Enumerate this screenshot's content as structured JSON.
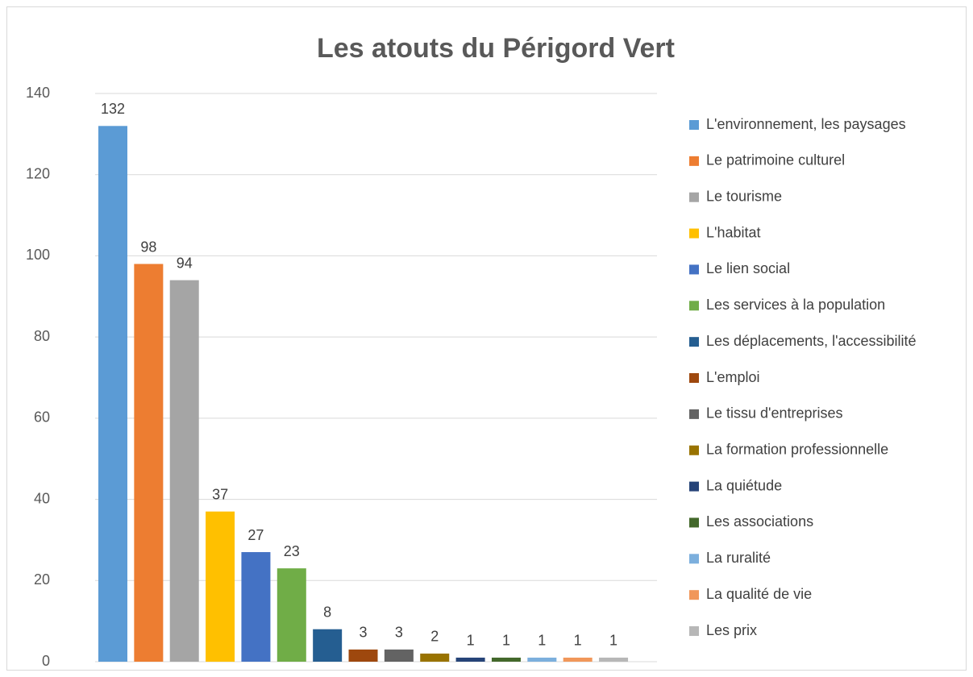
{
  "chart_data": {
    "type": "bar",
    "title": "Les atouts du Périgord Vert",
    "series": [
      {
        "name": "L'environnement, les paysages",
        "color": "#5b9bd5",
        "values": [
          132
        ]
      },
      {
        "name": "Le patrimoine culturel",
        "color": "#ed7d31",
        "values": [
          98
        ]
      },
      {
        "name": "Le tourisme",
        "color": "#a5a5a5",
        "values": [
          94
        ]
      },
      {
        "name": "L'habitat",
        "color": "#ffc000",
        "values": [
          37
        ]
      },
      {
        "name": "Le lien social",
        "color": "#4472c4",
        "values": [
          27
        ]
      },
      {
        "name": "Les services à la population",
        "color": "#70ad47",
        "values": [
          23
        ]
      },
      {
        "name": "Les déplacements, l'accessibilité",
        "color": "#255e91",
        "values": [
          8
        ]
      },
      {
        "name": "L'emploi",
        "color": "#9e480e",
        "values": [
          3
        ]
      },
      {
        "name": "Le tissu d'entreprises",
        "color": "#636363",
        "values": [
          3
        ]
      },
      {
        "name": "La formation professionnelle",
        "color": "#997300",
        "values": [
          2
        ]
      },
      {
        "name": "La quiétude",
        "color": "#264478",
        "values": [
          1
        ]
      },
      {
        "name": "Les associations",
        "color": "#43682b",
        "values": [
          1
        ]
      },
      {
        "name": "La ruralité",
        "color": "#7cafdd",
        "values": [
          1
        ]
      },
      {
        "name": "La qualité de vie",
        "color": "#f1975a",
        "values": [
          1
        ]
      },
      {
        "name": "Les prix",
        "color": "#b7b7b7",
        "values": [
          1
        ]
      }
    ],
    "ylim": [
      0,
      140
    ],
    "yticks": [
      0,
      20,
      40,
      60,
      80,
      100,
      120,
      140
    ],
    "grid": true,
    "legend": "right"
  }
}
